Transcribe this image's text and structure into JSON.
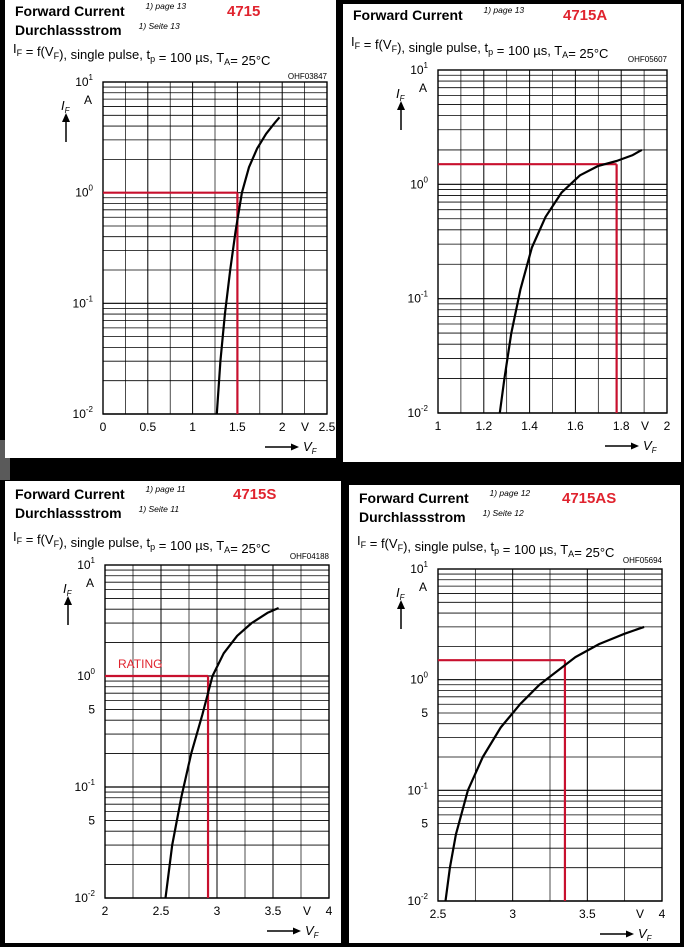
{
  "chart_data": [
    {
      "type": "line",
      "title": "Forward Current",
      "title_ref": "1) page 13",
      "subtitle": "Durchlassstrom",
      "subtitle_ref": "1) Seite 13",
      "model": "4715",
      "condition": "IF = f(VF), single pulse, tp = 100 µs, TA = 25°C",
      "code": "OHF03847",
      "ylabel": "IF",
      "yunit": "A",
      "xlabel": "VF",
      "xunit": "V",
      "yscale": "log",
      "xlim": [
        0,
        2.5
      ],
      "ylim": [
        0.01,
        10
      ],
      "x_ticks": [
        "0",
        "0.5",
        "1",
        "1.5",
        "2",
        "2.5"
      ],
      "y_ticks": [
        {
          "base": "10",
          "exp": "1"
        },
        {
          "base": "10",
          "exp": "0"
        },
        {
          "base": "10",
          "exp": "-1"
        },
        {
          "base": "10",
          "exp": "-2"
        }
      ],
      "series": [
        {
          "name": "IF",
          "x": [
            1.27,
            1.31,
            1.36,
            1.42,
            1.48,
            1.55,
            1.63,
            1.72,
            1.82,
            1.92,
            1.97
          ],
          "y": [
            0.01,
            0.03,
            0.08,
            0.2,
            0.45,
            1.0,
            1.7,
            2.5,
            3.4,
            4.3,
            4.8
          ]
        }
      ],
      "marker": {
        "x": 1.5,
        "y": 1.0,
        "label": ""
      }
    },
    {
      "type": "line",
      "title": "Forward Current",
      "title_ref": "1) page 13",
      "subtitle": "",
      "subtitle_ref": "",
      "model": "4715A",
      "condition": "IF = f(VF), single pulse, tp = 100 µs, TA = 25°C",
      "code": "OHF05607",
      "ylabel": "IF",
      "yunit": "A",
      "xlabel": "VF",
      "xunit": "V",
      "yscale": "log",
      "xlim": [
        1,
        2
      ],
      "ylim": [
        0.01,
        10
      ],
      "x_ticks": [
        "1",
        "1.2",
        "1.4",
        "1.6",
        "1.8",
        "2"
      ],
      "y_ticks": [
        {
          "base": "10",
          "exp": "1"
        },
        {
          "base": "10",
          "exp": "0"
        },
        {
          "base": "10",
          "exp": "-1"
        },
        {
          "base": "10",
          "exp": "-2"
        }
      ],
      "series": [
        {
          "name": "IF",
          "x": [
            1.27,
            1.29,
            1.32,
            1.36,
            1.41,
            1.47,
            1.54,
            1.62,
            1.7,
            1.78,
            1.85,
            1.89
          ],
          "y": [
            0.01,
            0.02,
            0.05,
            0.12,
            0.28,
            0.52,
            0.85,
            1.2,
            1.45,
            1.6,
            1.8,
            2.0
          ]
        }
      ],
      "marker": {
        "x": 1.78,
        "y": 1.5,
        "label": ""
      }
    },
    {
      "type": "line",
      "title": "Forward Current",
      "title_ref": "1) page 11",
      "subtitle": "Durchlassstrom",
      "subtitle_ref": "1) Seite 11",
      "model": "4715S",
      "condition": "IF = f(VF), single pulse, tp = 100 µs, TA = 25°C",
      "code": "OHF04188",
      "ylabel": "IF",
      "yunit": "A",
      "xlabel": "VF",
      "xunit": "V",
      "yscale": "log",
      "xlim": [
        2,
        4
      ],
      "ylim": [
        0.01,
        10
      ],
      "x_ticks": [
        "2",
        "2.5",
        "3",
        "3.5",
        "4"
      ],
      "y_ticks": [
        {
          "base": "10",
          "exp": "1"
        },
        {
          "base": "10",
          "exp": "0"
        },
        {
          "base": "",
          "exp": "5"
        },
        {
          "base": "10",
          "exp": "-1"
        },
        {
          "base": "",
          "exp": "5"
        },
        {
          "base": "10",
          "exp": "-2"
        }
      ],
      "series": [
        {
          "name": "IF",
          "x": [
            2.54,
            2.6,
            2.68,
            2.77,
            2.87,
            2.96,
            3.06,
            3.18,
            3.31,
            3.45,
            3.55
          ],
          "y": [
            0.01,
            0.03,
            0.08,
            0.2,
            0.45,
            1.0,
            1.6,
            2.3,
            3.0,
            3.7,
            4.1
          ]
        }
      ],
      "marker": {
        "x": 2.92,
        "y": 1.0,
        "label": "RATING"
      }
    },
    {
      "type": "line",
      "title": "Forward Current",
      "title_ref": "1) page 12",
      "subtitle": "Durchlassstrom",
      "subtitle_ref": "1) Seite 12",
      "model": "4715AS",
      "condition": "IF = f(VF), single pulse, tp = 100 µs, TA = 25°C",
      "code": "OHF05694",
      "ylabel": "IF",
      "yunit": "A",
      "xlabel": "VF",
      "xunit": "V",
      "yscale": "log",
      "xlim": [
        2.5,
        4
      ],
      "ylim": [
        0.01,
        10
      ],
      "x_ticks": [
        "2.5",
        "3",
        "3.5",
        "4"
      ],
      "y_ticks": [
        {
          "base": "10",
          "exp": "1"
        },
        {
          "base": "10",
          "exp": "0"
        },
        {
          "base": "",
          "exp": "5"
        },
        {
          "base": "10",
          "exp": "-1"
        },
        {
          "base": "",
          "exp": "5"
        },
        {
          "base": "10",
          "exp": "-2"
        }
      ],
      "series": [
        {
          "name": "IF",
          "x": [
            2.55,
            2.58,
            2.62,
            2.7,
            2.8,
            2.92,
            3.05,
            3.18,
            3.3,
            3.42,
            3.58,
            3.75,
            3.88
          ],
          "y": [
            0.01,
            0.02,
            0.04,
            0.1,
            0.2,
            0.37,
            0.6,
            0.9,
            1.2,
            1.6,
            2.1,
            2.6,
            3.0
          ]
        }
      ],
      "marker": {
        "x": 3.35,
        "y": 1.5,
        "label": ""
      }
    }
  ]
}
